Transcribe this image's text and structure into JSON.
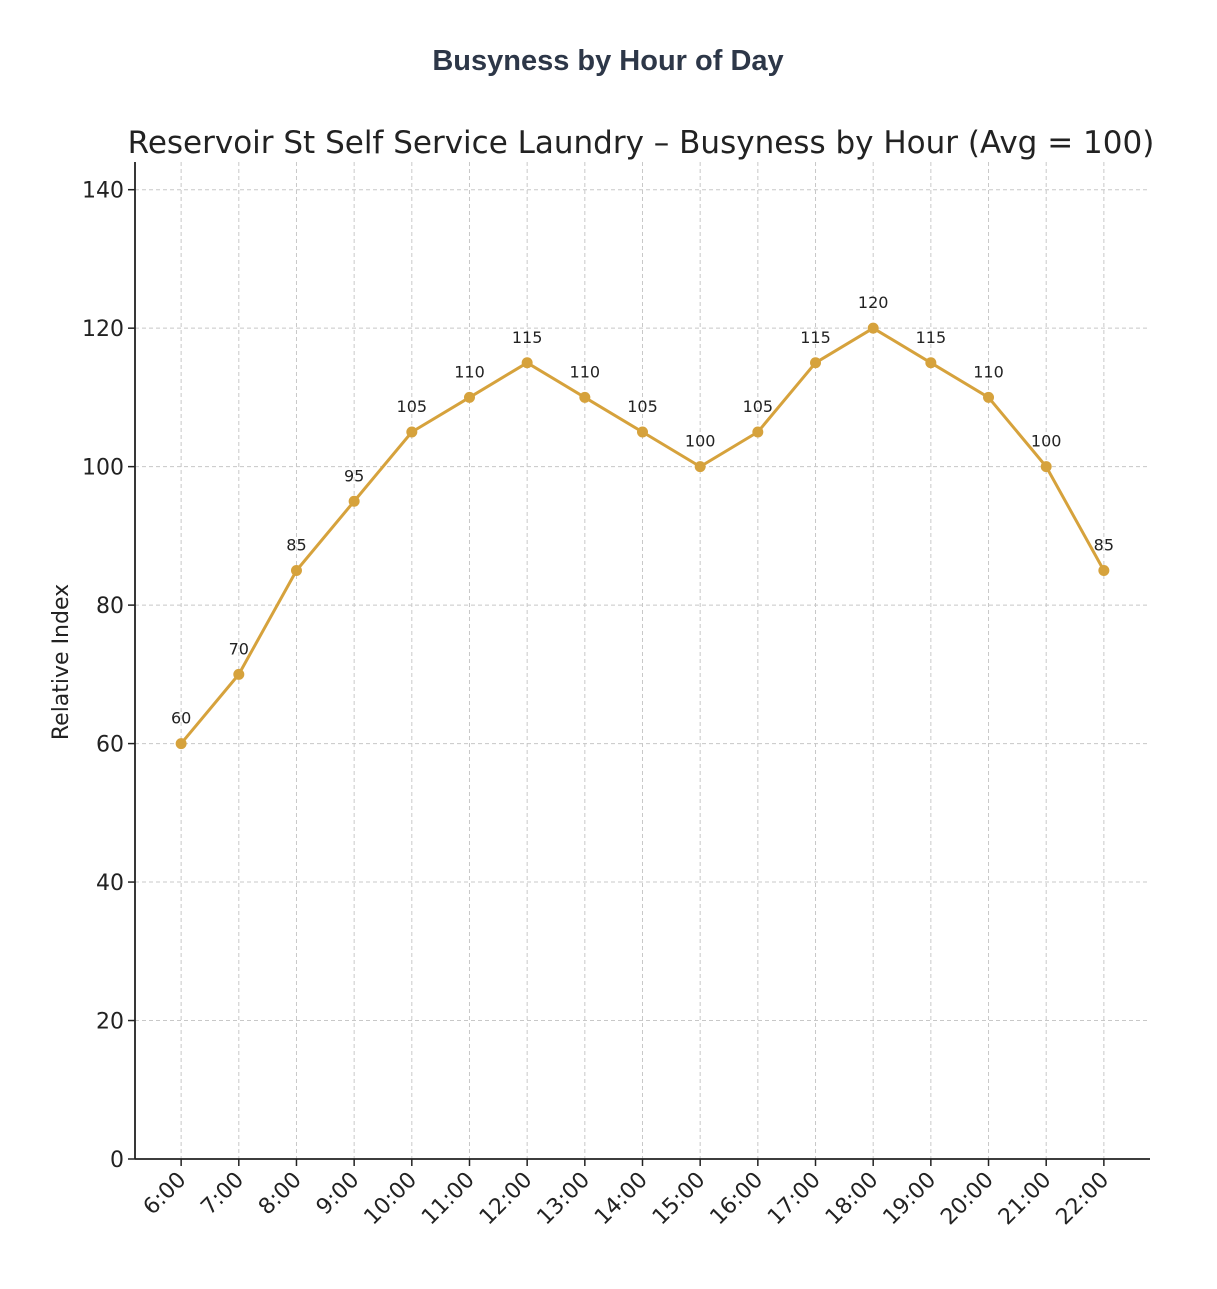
{
  "header": {
    "title": "Busyness by Hour of Day"
  },
  "chart_data": {
    "type": "line",
    "title": "Reservoir St Self Service Laundry – Busyness by Hour (Avg = 100)",
    "y_label": "Relative Index",
    "categories": [
      "6:00",
      "7:00",
      "8:00",
      "9:00",
      "10:00",
      "11:00",
      "12:00",
      "13:00",
      "14:00",
      "15:00",
      "16:00",
      "17:00",
      "18:00",
      "19:00",
      "20:00",
      "21:00",
      "22:00"
    ],
    "values": [
      60,
      70,
      85,
      95,
      105,
      110,
      115,
      110,
      105,
      100,
      105,
      115,
      120,
      115,
      110,
      100,
      85
    ],
    "color": "#d6a23c",
    "ylim": [
      0,
      144
    ],
    "yticks": [
      0,
      20,
      40,
      60,
      80,
      100,
      120,
      140
    ],
    "grid": true,
    "data_labels": true
  }
}
